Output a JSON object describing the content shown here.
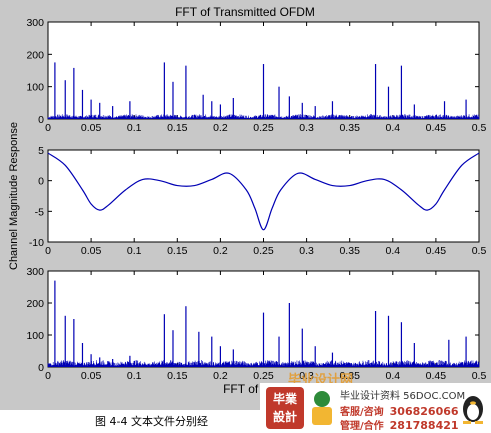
{
  "figure": {
    "title": "FFT of Transmitted OFDM",
    "ylabel": "Channel Magnitude Response",
    "xlabel": "FFT of Re",
    "caption": "图 4-4 文本文件分别经"
  },
  "colors": {
    "trace": "#0000b4",
    "axes_bg": "#ffffff",
    "figure_bg": "#c8c8c8"
  },
  "chart_data": [
    {
      "type": "line",
      "title": "FFT of Transmitted OFDM",
      "xlim": [
        0,
        0.5
      ],
      "ylim": [
        0,
        300
      ],
      "xticks": [
        "0",
        "0.05",
        "0.1",
        "0.15",
        "0.2",
        "0.25",
        "0.3",
        "0.35",
        "0.4",
        "0.45",
        "0.5"
      ],
      "yticks": [
        "0",
        "100",
        "200",
        "300"
      ],
      "spikes": [
        [
          0.008,
          175
        ],
        [
          0.02,
          120
        ],
        [
          0.03,
          158
        ],
        [
          0.04,
          90
        ],
        [
          0.05,
          60
        ],
        [
          0.06,
          50
        ],
        [
          0.075,
          40
        ],
        [
          0.095,
          55
        ],
        [
          0.135,
          175
        ],
        [
          0.145,
          115
        ],
        [
          0.16,
          165
        ],
        [
          0.18,
          75
        ],
        [
          0.19,
          55
        ],
        [
          0.2,
          45
        ],
        [
          0.215,
          65
        ],
        [
          0.25,
          170
        ],
        [
          0.268,
          100
        ],
        [
          0.28,
          70
        ],
        [
          0.295,
          50
        ],
        [
          0.31,
          40
        ],
        [
          0.33,
          55
        ],
        [
          0.38,
          170
        ],
        [
          0.395,
          100
        ],
        [
          0.41,
          165
        ],
        [
          0.425,
          45
        ],
        [
          0.46,
          55
        ],
        [
          0.485,
          60
        ]
      ],
      "noise_level": 15
    },
    {
      "type": "line",
      "xlim": [
        0,
        0.5
      ],
      "ylim": [
        -10,
        5
      ],
      "xticks": [
        "0",
        "0.05",
        "0.1",
        "0.15",
        "0.2",
        "0.25",
        "0.3",
        "0.35",
        "0.4",
        "0.45",
        "0.5"
      ],
      "yticks": [
        "-10",
        "-5",
        "0",
        "5"
      ],
      "x": [
        0,
        0.02,
        0.04,
        0.05,
        0.06,
        0.07,
        0.09,
        0.11,
        0.13,
        0.15,
        0.17,
        0.19,
        0.21,
        0.23,
        0.24,
        0.25,
        0.26,
        0.27,
        0.29,
        0.31,
        0.33,
        0.35,
        0.37,
        0.39,
        0.41,
        0.43,
        0.44,
        0.45,
        0.46,
        0.48,
        0.5
      ],
      "y": [
        4.5,
        2.5,
        -1.5,
        -3.8,
        -4.8,
        -4.0,
        -1.5,
        0.2,
        0.0,
        -0.8,
        -0.8,
        0.2,
        1.2,
        -1.5,
        -4.5,
        -8.0,
        -4.5,
        -1.5,
        1.2,
        0.2,
        -0.8,
        -0.8,
        0.0,
        0.2,
        -1.5,
        -4.0,
        -4.8,
        -3.8,
        -1.5,
        2.5,
        4.5
      ]
    },
    {
      "type": "line",
      "xlim": [
        0,
        0.5
      ],
      "ylim": [
        0,
        300
      ],
      "xticks": [
        "0",
        "0.05",
        "0.1",
        "0.15",
        "0.2",
        "0.25",
        "0.3",
        "0.35",
        "0.4",
        "0.45",
        "0.5"
      ],
      "yticks": [
        "0",
        "100",
        "200",
        "300"
      ],
      "spikes": [
        [
          0.008,
          270
        ],
        [
          0.02,
          160
        ],
        [
          0.03,
          150
        ],
        [
          0.04,
          75
        ],
        [
          0.05,
          40
        ],
        [
          0.06,
          30
        ],
        [
          0.075,
          25
        ],
        [
          0.095,
          35
        ],
        [
          0.135,
          165
        ],
        [
          0.145,
          115
        ],
        [
          0.16,
          190
        ],
        [
          0.175,
          110
        ],
        [
          0.19,
          95
        ],
        [
          0.2,
          65
        ],
        [
          0.215,
          55
        ],
        [
          0.25,
          170
        ],
        [
          0.268,
          95
        ],
        [
          0.28,
          200
        ],
        [
          0.295,
          120
        ],
        [
          0.31,
          65
        ],
        [
          0.33,
          45
        ],
        [
          0.38,
          175
        ],
        [
          0.395,
          160
        ],
        [
          0.41,
          140
        ],
        [
          0.425,
          75
        ],
        [
          0.465,
          85
        ],
        [
          0.485,
          95
        ]
      ],
      "noise_level": 22
    }
  ],
  "ad": {
    "logo_line1": "毕業",
    "logo_line2": "設計",
    "site": "毕业设计资料 56DOC.COM",
    "row1_label": "客服/咨询",
    "row1_num": "306826066",
    "row2_label": "管理/合作",
    "row2_num": "281788421",
    "banner": "毕业设计网"
  }
}
